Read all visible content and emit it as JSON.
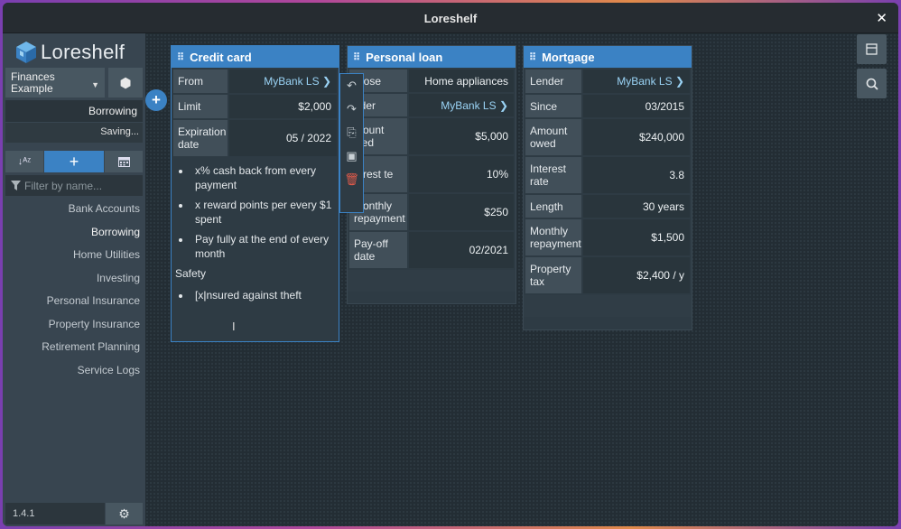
{
  "window": {
    "title": "Loreshelf"
  },
  "app": {
    "name": "Loreshelf",
    "version": "1.4.1"
  },
  "workspace": {
    "name": "Finances Example"
  },
  "sidebar": {
    "current": "Borrowing",
    "status": "Saving...",
    "filter_placeholder": "Filter by name...",
    "items": [
      {
        "label": "Bank Accounts"
      },
      {
        "label": "Borrowing"
      },
      {
        "label": "Home Utilities"
      },
      {
        "label": "Investing"
      },
      {
        "label": "Personal Insurance"
      },
      {
        "label": "Property Insurance"
      },
      {
        "label": "Retirement Planning"
      },
      {
        "label": "Service Logs"
      }
    ]
  },
  "cards": {
    "credit": {
      "title": "Credit card",
      "rows": [
        {
          "label": "From",
          "value": "MyBank LS ❯"
        },
        {
          "label": "Limit",
          "value": "$2,000"
        },
        {
          "label": "Expiration date",
          "value": "05 / 2022"
        }
      ],
      "bullets": [
        "x% cash back from every payment",
        "x reward points per every $1 spent",
        "Pay fully at the end of every month"
      ],
      "section": "Safety",
      "section_bullet_pre": "[x",
      "section_bullet_post": "nsured against theft"
    },
    "loan": {
      "title": "Personal loan",
      "rows": [
        {
          "label": "rpose",
          "value": "Home appliances"
        },
        {
          "label": "nder",
          "value": "MyBank LS ❯"
        },
        {
          "label": "mount wed",
          "value": "$5,000"
        },
        {
          "label": "terest te",
          "value": "10%"
        },
        {
          "label": "Monthly repayment",
          "value": "$250"
        },
        {
          "label": "Pay-off date",
          "value": "02/2021"
        }
      ]
    },
    "mortgage": {
      "title": "Mortgage",
      "rows": [
        {
          "label": "Lender",
          "value": "MyBank LS ❯"
        },
        {
          "label": "Since",
          "value": "03/2015"
        },
        {
          "label": "Amount owed",
          "value": "$240,000"
        },
        {
          "label": "Interest rate",
          "value": "3.8"
        },
        {
          "label": "Length",
          "value": "30 years"
        },
        {
          "label": "Monthly repayment",
          "value": "$1,500"
        },
        {
          "label": "Property tax",
          "value": "$2,400 / y"
        }
      ]
    }
  },
  "colors": {
    "accent": "#3b82c4",
    "link": "#9ad3f5",
    "danger": "#e05a4a"
  }
}
